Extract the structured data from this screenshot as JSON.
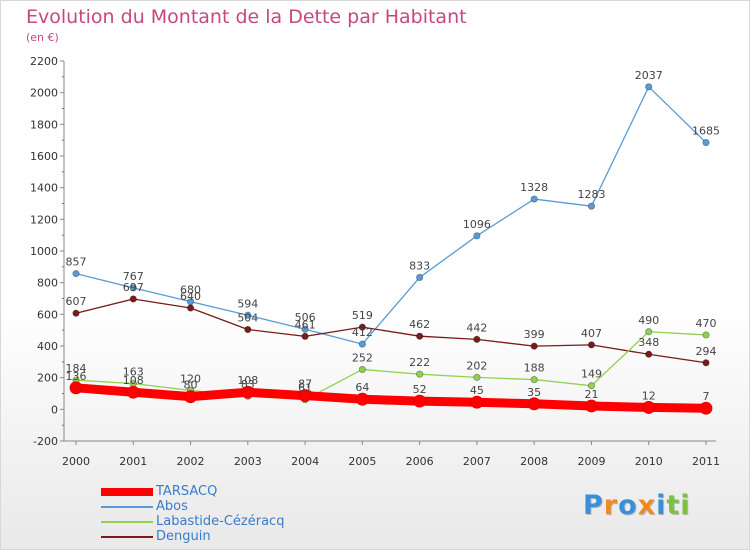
{
  "chart_data": {
    "type": "line",
    "title": "Evolution du Montant de la Dette par Habitant",
    "subtitle": "(en €)",
    "x": [
      "2000",
      "2001",
      "2002",
      "2003",
      "2004",
      "2005",
      "2006",
      "2007",
      "2008",
      "2009",
      "2010",
      "2011"
    ],
    "ylim": [
      -200,
      2200
    ],
    "yticks": [
      -200,
      0,
      200,
      400,
      600,
      800,
      1000,
      1200,
      1400,
      1600,
      1800,
      2000,
      2200
    ],
    "grid": false,
    "legend_position": "bottom-left",
    "series": [
      {
        "name": "TARSACQ",
        "color": "#ff0000",
        "values": [
          136,
          108,
          80,
          108,
          87,
          64,
          52,
          45,
          35,
          21,
          12,
          7
        ]
      },
      {
        "name": "Abos",
        "color": "#5b9bd5",
        "values": [
          857,
          767,
          680,
          594,
          506,
          412,
          833,
          1096,
          1328,
          1283,
          2037,
          1685
        ]
      },
      {
        "name": "Labastide-Cézéracq",
        "color": "#92d050",
        "values": [
          184,
          163,
          120,
          83,
          61,
          252,
          222,
          202,
          188,
          149,
          490,
          470
        ]
      },
      {
        "name": "Denguin",
        "color": "#7b1a1a",
        "values": [
          607,
          697,
          640,
          504,
          461,
          519,
          462,
          442,
          399,
          407,
          348,
          294
        ]
      }
    ]
  },
  "legend": [
    {
      "label": "TARSACQ",
      "color": "#ff0000",
      "text_color": "#3a7bc8"
    },
    {
      "label": "Abos",
      "color": "#5b9bd5",
      "text_color": "#3a7bc8"
    },
    {
      "label": "Labastide-Cézéracq",
      "color": "#92d050",
      "text_color": "#3a7bc8"
    },
    {
      "label": "Denguin",
      "color": "#7b1a1a",
      "text_color": "#3a7bc8"
    }
  ],
  "logo": {
    "text": "Proxiti",
    "letters": [
      {
        "char": "P",
        "color": "#3a8fd8"
      },
      {
        "char": "r",
        "color": "#f08a24"
      },
      {
        "char": "o",
        "color": "#3a8fd8"
      },
      {
        "char": "x",
        "color": "#f08a24"
      },
      {
        "char": "i",
        "color": "#3a8fd8"
      },
      {
        "char": "t",
        "color": "#7cc142"
      },
      {
        "char": "i",
        "color": "#7cc142"
      }
    ]
  }
}
